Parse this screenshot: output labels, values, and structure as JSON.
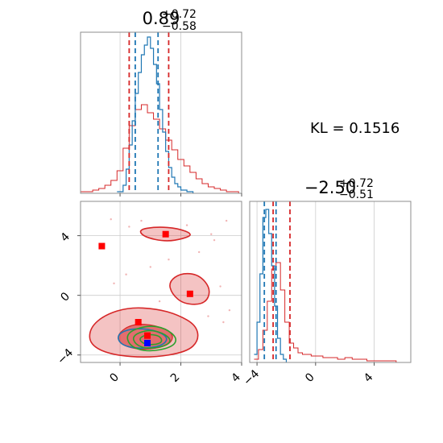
{
  "chart_data": {
    "type": "corner",
    "kl_label": "KL = 0.1516",
    "params": [
      {
        "title_value": "0.89",
        "title_plus": "+0.72",
        "title_minus": "−0.58",
        "range": [
          -1.3,
          4.0
        ],
        "ticks": [
          {
            "value": 0,
            "label": "0"
          },
          {
            "value": 2,
            "label": "2"
          },
          {
            "value": 4,
            "label": "4"
          }
        ]
      },
      {
        "title_value": "−2.50",
        "title_plus": "+0.72",
        "title_minus": "−0.51",
        "range": [
          -4.5,
          6.5
        ],
        "ticks": [
          {
            "value": -4,
            "label": "−4"
          },
          {
            "value": 0,
            "label": "0"
          },
          {
            "value": 4,
            "label": "4"
          }
        ]
      }
    ],
    "joint_ranges": {
      "x": [
        -1.3,
        4.0
      ],
      "y": [
        -4.5,
        6.3
      ]
    },
    "y_ticks_joint": [
      {
        "value": -4,
        "label": "−4"
      },
      {
        "value": 0,
        "label": "0"
      },
      {
        "value": 4,
        "label": "4"
      }
    ],
    "hist1": {
      "red": {
        "x": [
          -1.3,
          -1.1,
          -0.9,
          -0.7,
          -0.5,
          -0.3,
          -0.1,
          0.1,
          0.3,
          0.5,
          0.7,
          0.9,
          1.1,
          1.3,
          1.5,
          1.7,
          1.9,
          2.1,
          2.3,
          2.5,
          2.7,
          2.9,
          3.1,
          3.3,
          3.5,
          3.7,
          3.9
        ],
        "y": [
          0.01,
          0.01,
          0.02,
          0.03,
          0.05,
          0.08,
          0.14,
          0.28,
          0.42,
          0.52,
          0.55,
          0.5,
          0.46,
          0.4,
          0.33,
          0.27,
          0.21,
          0.17,
          0.13,
          0.09,
          0.06,
          0.04,
          0.03,
          0.02,
          0.01,
          0.01,
          0.0
        ]
      },
      "blue": {
        "x": [
          -0.1,
          0.1,
          0.2,
          0.3,
          0.4,
          0.5,
          0.6,
          0.7,
          0.8,
          0.9,
          1.0,
          1.1,
          1.2,
          1.3,
          1.4,
          1.5,
          1.6,
          1.7,
          1.8,
          1.9,
          2.0,
          2.2,
          2.4
        ],
        "y": [
          0.01,
          0.05,
          0.15,
          0.3,
          0.45,
          0.62,
          0.75,
          0.86,
          0.92,
          0.97,
          0.9,
          0.8,
          0.68,
          0.52,
          0.38,
          0.26,
          0.16,
          0.1,
          0.06,
          0.04,
          0.02,
          0.01,
          0.0
        ]
      },
      "red_quantiles": [
        0.3,
        1.6
      ],
      "blue_quantiles": [
        0.5,
        1.25
      ]
    },
    "hist2": {
      "red": {
        "x": [
          -4.2,
          -3.9,
          -3.6,
          -3.3,
          -3.0,
          -2.7,
          -2.4,
          -2.1,
          -1.8,
          -1.5,
          -1.2,
          -0.9,
          -0.6,
          -0.3,
          0.0,
          0.5,
          1.0,
          1.5,
          2.0,
          2.5,
          3.0,
          3.5,
          4.0,
          4.5,
          5.0,
          5.5
        ],
        "y": [
          0.02,
          0.08,
          0.2,
          0.38,
          0.58,
          0.62,
          0.45,
          0.25,
          0.12,
          0.09,
          0.06,
          0.05,
          0.05,
          0.04,
          0.04,
          0.03,
          0.03,
          0.02,
          0.03,
          0.02,
          0.02,
          0.01,
          0.01,
          0.01,
          0.01,
          0.0
        ]
      },
      "blue": {
        "x": [
          -4.2,
          -4.0,
          -3.8,
          -3.6,
          -3.4,
          -3.2,
          -3.0,
          -2.8,
          -2.6,
          -2.4,
          -2.2,
          -2.0
        ],
        "y": [
          0.05,
          0.25,
          0.55,
          0.9,
          0.95,
          0.8,
          0.6,
          0.35,
          0.15,
          0.05,
          0.02,
          0.0
        ]
      },
      "red_quantiles": [
        -2.9,
        -1.75
      ],
      "blue_quantiles": [
        -3.5,
        -2.7
      ]
    },
    "joint": {
      "red_blobs": [
        {
          "name": "main",
          "points": [
            [
              -1.0,
              -2.2
            ],
            [
              -0.5,
              -1.3
            ],
            [
              0.3,
              -0.8
            ],
            [
              1.2,
              -0.9
            ],
            [
              1.9,
              -1.3
            ],
            [
              2.5,
              -2.0
            ],
            [
              2.6,
              -3.0
            ],
            [
              2.2,
              -3.8
            ],
            [
              1.0,
              -4.2
            ],
            [
              -0.3,
              -4.0
            ],
            [
              -1.0,
              -3.3
            ]
          ]
        },
        {
          "name": "right",
          "points": [
            [
              1.6,
              0.9
            ],
            [
              2.0,
              1.5
            ],
            [
              2.6,
              1.4
            ],
            [
              3.0,
              0.4
            ],
            [
              2.8,
              -0.6
            ],
            [
              2.1,
              -0.6
            ],
            [
              1.7,
              0.1
            ]
          ]
        },
        {
          "name": "top",
          "points": [
            [
              0.6,
              4.4
            ],
            [
              1.2,
              4.6
            ],
            [
              1.9,
              4.5
            ],
            [
              2.4,
              4.1
            ],
            [
              2.1,
              3.8
            ],
            [
              1.5,
              3.6
            ],
            [
              0.8,
              3.9
            ]
          ]
        }
      ],
      "red_inner": [
        [
          -0.1,
          -2.6
        ],
        [
          0.4,
          -1.9
        ],
        [
          1.2,
          -2.0
        ],
        [
          1.8,
          -2.6
        ],
        [
          1.6,
          -3.4
        ],
        [
          0.7,
          -3.7
        ],
        [
          0.0,
          -3.3
        ]
      ],
      "blue_contour": [
        [
          -0.1,
          -2.6
        ],
        [
          0.4,
          -2.2
        ],
        [
          1.1,
          -2.3
        ],
        [
          1.6,
          -2.8
        ],
        [
          1.4,
          -3.4
        ],
        [
          0.6,
          -3.6
        ],
        [
          0.0,
          -3.3
        ]
      ],
      "green_contours": [
        [
          [
            0.2,
            -2.5
          ],
          [
            0.9,
            -2.0
          ],
          [
            1.5,
            -2.2
          ],
          [
            1.9,
            -2.9
          ],
          [
            1.7,
            -3.5
          ],
          [
            0.9,
            -3.8
          ],
          [
            0.3,
            -3.4
          ]
        ],
        [
          [
            0.4,
            -2.7
          ],
          [
            0.9,
            -2.3
          ],
          [
            1.4,
            -2.5
          ],
          [
            1.7,
            -3.0
          ],
          [
            1.5,
            -3.4
          ],
          [
            0.9,
            -3.6
          ],
          [
            0.5,
            -3.3
          ]
        ],
        [
          [
            0.6,
            -2.9
          ],
          [
            0.9,
            -2.6
          ],
          [
            1.3,
            -2.7
          ],
          [
            1.4,
            -3.1
          ],
          [
            1.2,
            -3.3
          ],
          [
            0.8,
            -3.3
          ]
        ]
      ],
      "red_markers": [
        [
          -0.6,
          3.3
        ],
        [
          1.5,
          4.1
        ],
        [
          2.3,
          0.1
        ],
        [
          0.6,
          -1.8
        ],
        [
          0.9,
          -2.7
        ]
      ],
      "blue_markers": [
        [
          0.9,
          -3.2
        ]
      ],
      "scatter": [
        [
          -0.3,
          5.1
        ],
        [
          0.7,
          5.0
        ],
        [
          0.3,
          4.6
        ],
        [
          3.0,
          4.1
        ],
        [
          3.5,
          5.0
        ],
        [
          1.0,
          1.9
        ],
        [
          -0.2,
          0.8
        ],
        [
          1.3,
          -0.4
        ],
        [
          3.1,
          3.7
        ],
        [
          2.2,
          4.7
        ],
        [
          3.6,
          -1.0
        ],
        [
          3.4,
          -1.8
        ],
        [
          2.9,
          -1.4
        ],
        [
          1.6,
          2.4
        ],
        [
          2.6,
          2.9
        ],
        [
          0.2,
          1.4
        ],
        [
          3.3,
          0.6
        ]
      ]
    }
  }
}
